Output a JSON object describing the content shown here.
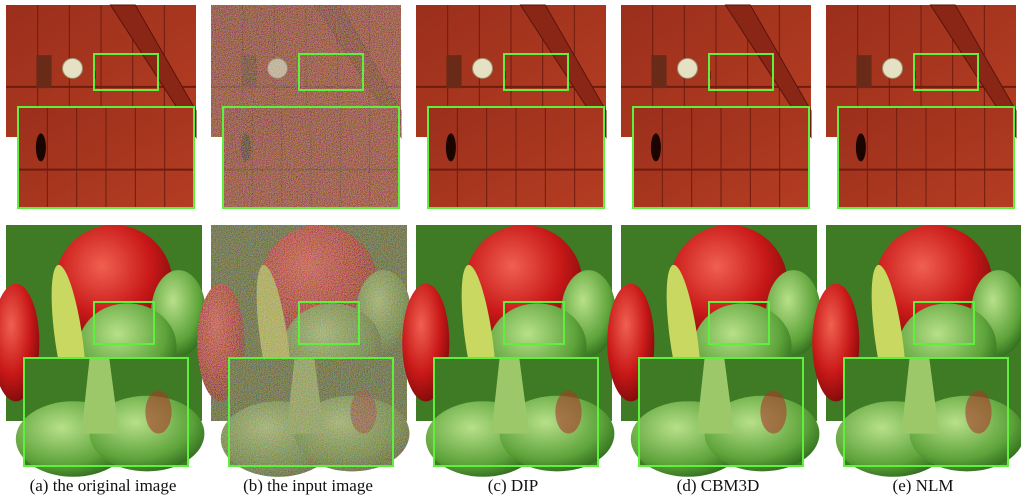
{
  "captions": [
    "(a) the original image",
    "(b) the input image",
    "(c) DIP",
    "(d) CBM3D",
    "(e) NLM"
  ]
}
